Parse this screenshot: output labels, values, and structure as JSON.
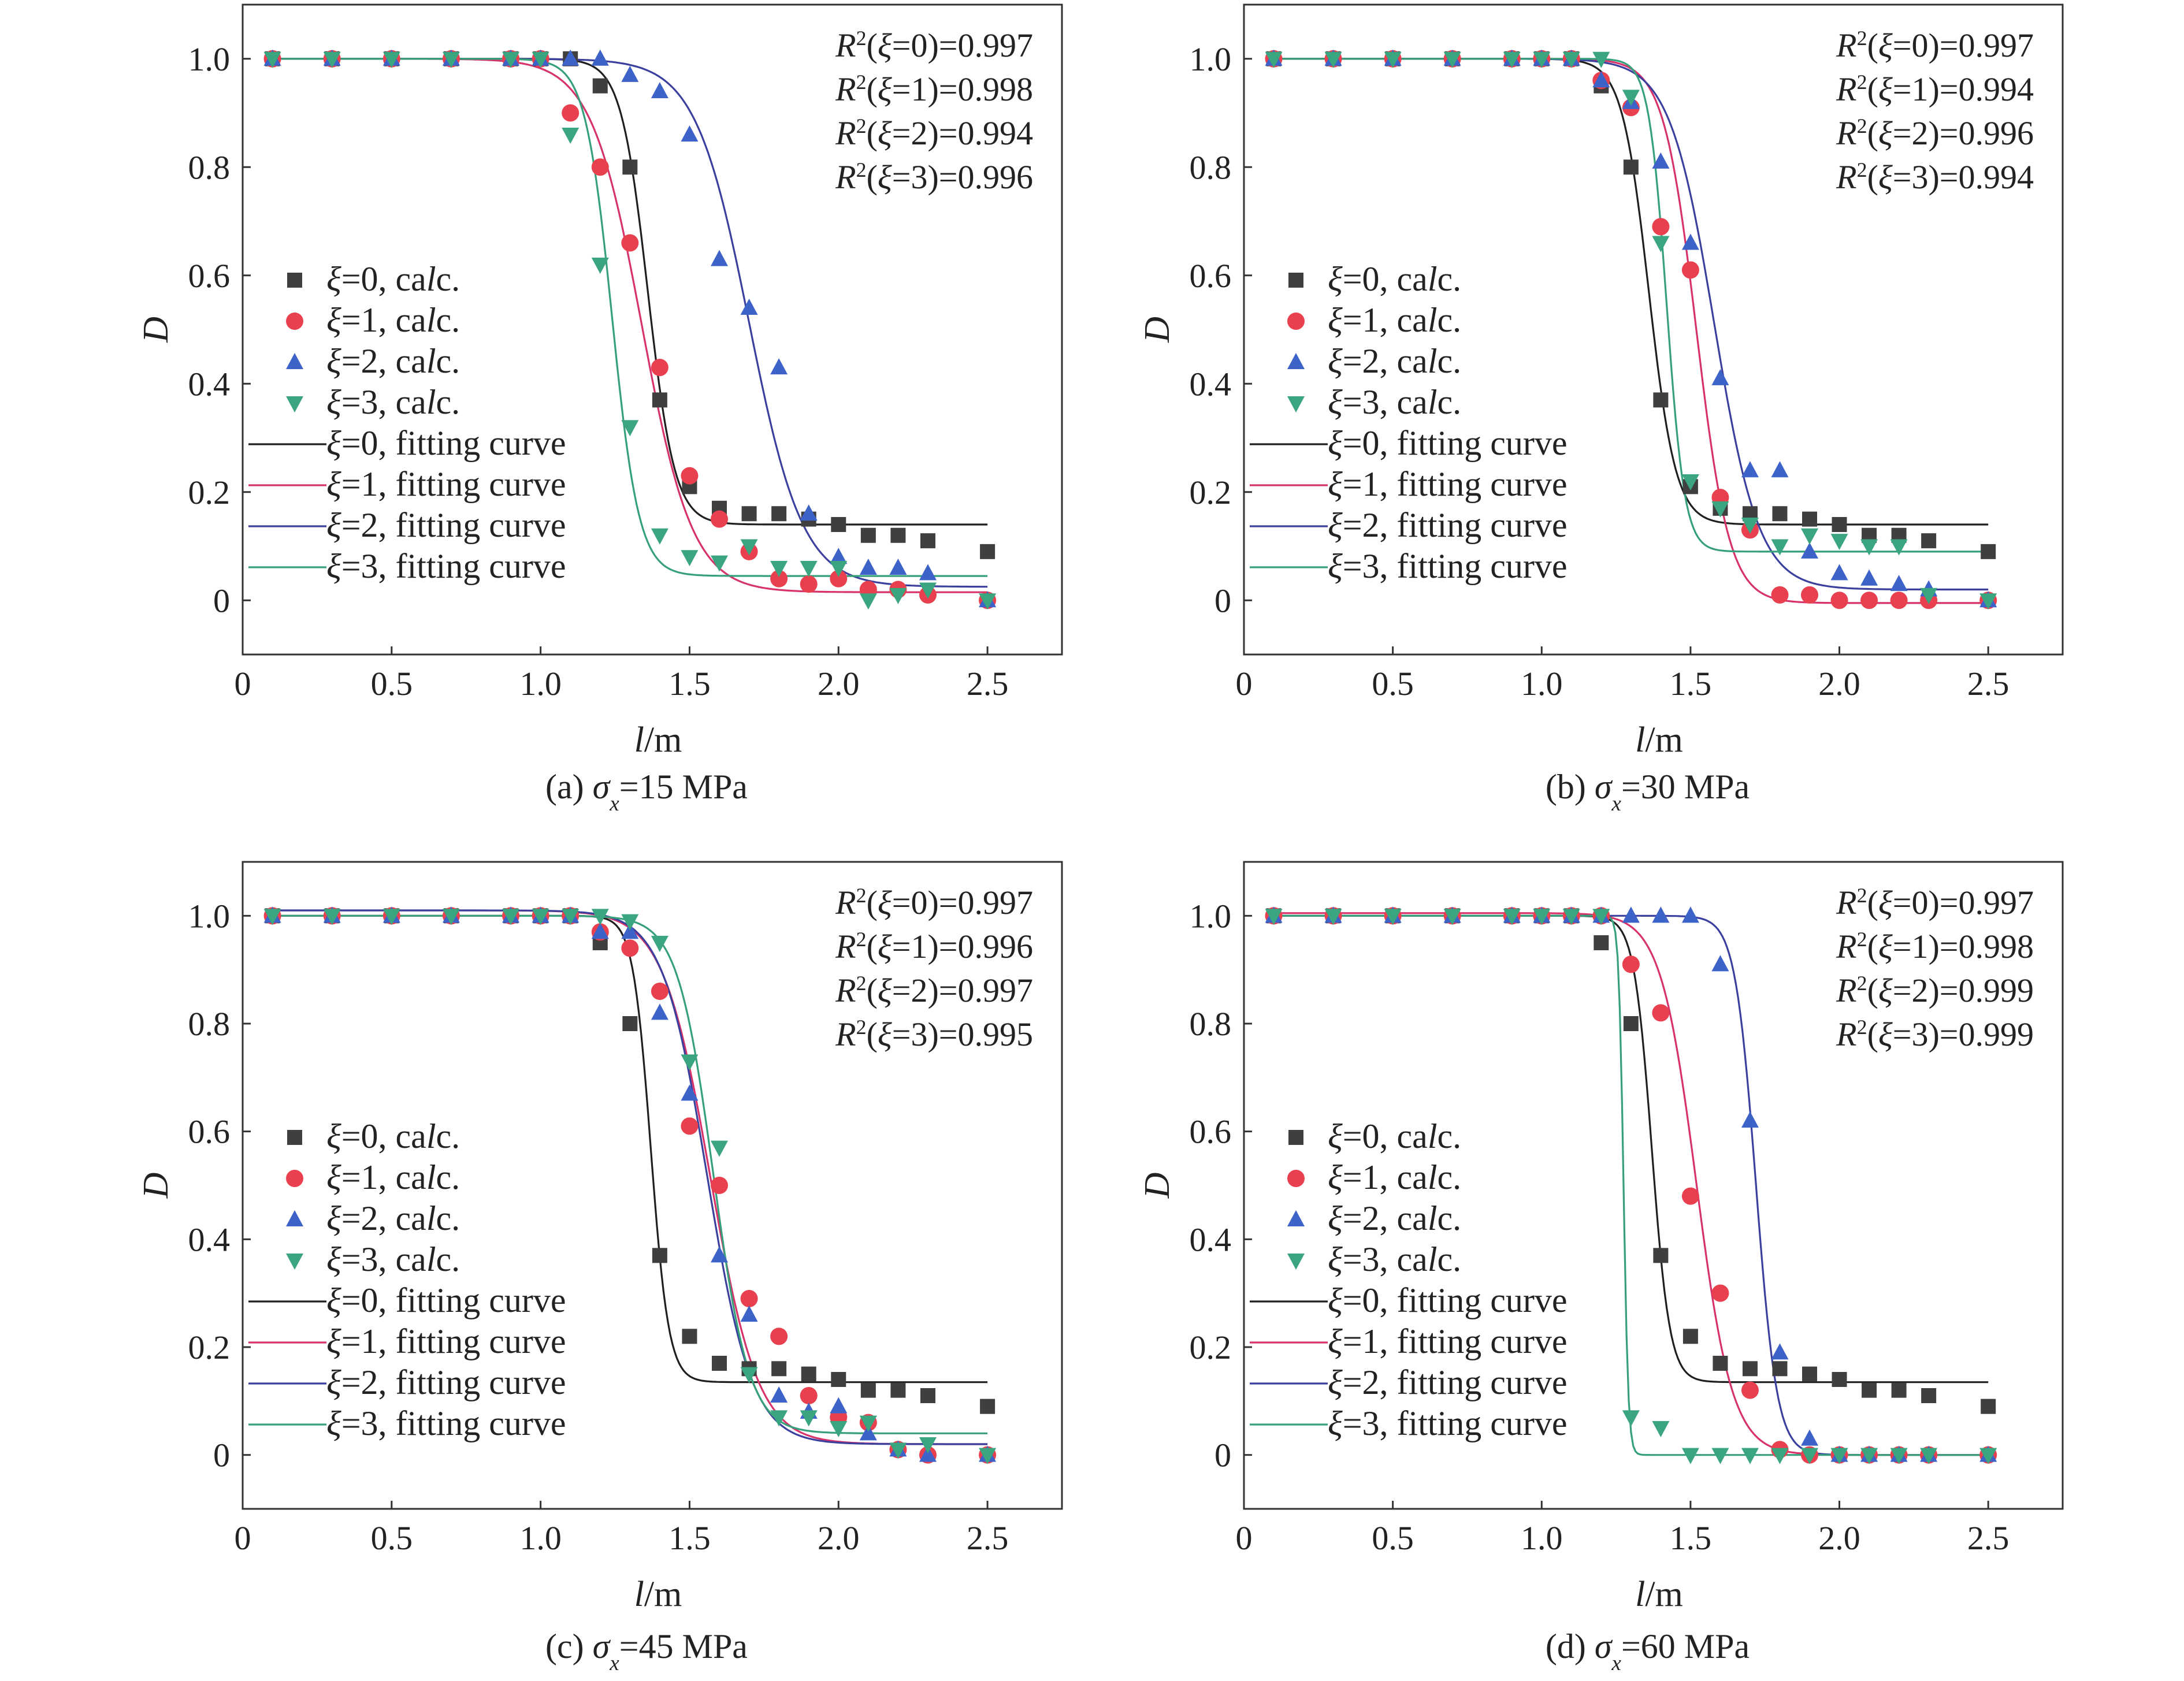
{
  "figure": {
    "panels": [
      {
        "caption": "(a) σx=15 MPa",
        "r2": [
          "R²(ξ=0)=0.997",
          "R²(ξ=1)=0.998",
          "R²(ξ=2)=0.994",
          "R²(ξ=3)=0.996"
        ]
      },
      {
        "caption": "(b) σx=30 MPa",
        "r2": [
          "R²(ξ=0)=0.997",
          "R²(ξ=1)=0.994",
          "R²(ξ=2)=0.996",
          "R²(ξ=3)=0.994"
        ]
      },
      {
        "caption": "(c) σx=45 MPa",
        "r2": [
          "R²(ξ=0)=0.997",
          "R²(ξ=1)=0.996",
          "R²(ξ=2)=0.997",
          "R²(ξ=3)=0.995"
        ]
      },
      {
        "caption": "(d) σx=60 MPa",
        "r2": [
          "R²(ξ=0)=0.997",
          "R²(ξ=1)=0.998",
          "R²(ξ=2)=0.999",
          "R²(ξ=3)=0.999"
        ]
      }
    ]
  },
  "colors": {
    "xi0": "#3f3f3f",
    "xi1": "#e8404f",
    "xi2": "#3d62c8",
    "xi3": "#3aa57e",
    "curve0": "#1f1f1f",
    "curve1": "#d8326a",
    "curve2": "#3b3f9e",
    "curve3": "#35a07a"
  },
  "chart_data": [
    {
      "type": "scatter",
      "caption": "(a) σx=15 MPa",
      "xlabel": "l/m",
      "ylabel": "D",
      "xlim": [
        0,
        2.75
      ],
      "ylim": [
        -0.1,
        1.1
      ],
      "xticks": [
        "0",
        "0.5",
        "1.0",
        "1.5",
        "2.0",
        "2.5"
      ],
      "yticks": [
        "0",
        "0.2",
        "0.4",
        "0.6",
        "0.8",
        "1.0"
      ],
      "legend": [
        "ξ=0, calc.",
        "ξ=1, calc.",
        "ξ=2, calc.",
        "ξ=3, calc.",
        "ξ=0, fitting curve",
        "ξ=1, fitting curve",
        "ξ=2, fitting curve",
        "ξ=3, fitting curve"
      ],
      "x": [
        0.1,
        0.3,
        0.5,
        0.7,
        0.9,
        1.0,
        1.1,
        1.2,
        1.3,
        1.4,
        1.5,
        1.6,
        1.7,
        1.8,
        1.9,
        2.0,
        2.1,
        2.2,
        2.3,
        2.5
      ],
      "series": [
        {
          "name": "ξ=0, calc.",
          "values": [
            1.0,
            1.0,
            1.0,
            1.0,
            1.0,
            1.0,
            1.0,
            0.95,
            0.8,
            0.37,
            0.21,
            0.17,
            0.16,
            0.16,
            0.15,
            0.14,
            0.12,
            0.12,
            0.11,
            0.09
          ]
        },
        {
          "name": "ξ=1, calc.",
          "values": [
            1.0,
            1.0,
            1.0,
            1.0,
            1.0,
            1.0,
            0.9,
            0.8,
            0.66,
            0.43,
            0.23,
            0.15,
            0.09,
            0.04,
            0.03,
            0.04,
            0.02,
            0.02,
            0.01,
            0.0
          ]
        },
        {
          "name": "ξ=2, calc.",
          "values": [
            1.0,
            1.0,
            1.0,
            1.0,
            1.0,
            1.0,
            1.0,
            1.0,
            0.97,
            0.94,
            0.86,
            0.63,
            0.54,
            0.43,
            0.16,
            0.08,
            0.06,
            0.06,
            0.05,
            0.0
          ]
        },
        {
          "name": "ξ=3, calc.",
          "values": [
            1.0,
            1.0,
            1.0,
            1.0,
            1.0,
            1.0,
            0.86,
            0.62,
            0.32,
            0.12,
            0.08,
            0.07,
            0.1,
            0.06,
            0.06,
            0.06,
            0.0,
            0.01,
            0.02,
            0.0
          ]
        }
      ],
      "curves": [
        {
          "name": "ξ=0, fitting curve",
          "top": 1.0,
          "bottom": 0.14,
          "x0": 1.36,
          "k": 0.045
        },
        {
          "name": "ξ=1, fitting curve",
          "top": 1.0,
          "bottom": 0.015,
          "x0": 1.34,
          "k": 0.085
        },
        {
          "name": "ξ=2, fitting curve",
          "top": 1.0,
          "bottom": 0.025,
          "x0": 1.7,
          "k": 0.09
        },
        {
          "name": "ξ=3, fitting curve",
          "top": 1.0,
          "bottom": 0.045,
          "x0": 1.24,
          "k": 0.045
        }
      ]
    },
    {
      "type": "scatter",
      "caption": "(b) σx=30 MPa",
      "xlabel": "l/m",
      "ylabel": "D",
      "xlim": [
        0,
        2.75
      ],
      "ylim": [
        -0.1,
        1.1
      ],
      "xticks": [
        "0",
        "0.5",
        "1.0",
        "1.5",
        "2.0",
        "2.5"
      ],
      "yticks": [
        "0",
        "0.2",
        "0.4",
        "0.6",
        "0.8",
        "1.0"
      ],
      "legend": [
        "ξ=0, calc.",
        "ξ=1, calc.",
        "ξ=2, calc.",
        "ξ=3, calc.",
        "ξ=0, fitting curve",
        "ξ=1, fitting curve",
        "ξ=2, fitting curve",
        "ξ=3, fitting curve"
      ],
      "x": [
        0.1,
        0.3,
        0.5,
        0.7,
        0.9,
        1.0,
        1.1,
        1.2,
        1.3,
        1.4,
        1.5,
        1.6,
        1.7,
        1.8,
        1.9,
        2.0,
        2.1,
        2.2,
        2.3,
        2.5
      ],
      "series": [
        {
          "name": "ξ=0, calc.",
          "values": [
            1.0,
            1.0,
            1.0,
            1.0,
            1.0,
            1.0,
            1.0,
            0.95,
            0.8,
            0.37,
            0.21,
            0.17,
            0.16,
            0.16,
            0.15,
            0.14,
            0.12,
            0.12,
            0.11,
            0.09
          ]
        },
        {
          "name": "ξ=1, calc.",
          "values": [
            1.0,
            1.0,
            1.0,
            1.0,
            1.0,
            1.0,
            1.0,
            0.96,
            0.91,
            0.69,
            0.61,
            0.19,
            0.13,
            0.01,
            0.01,
            0.0,
            0.0,
            0.0,
            0.0,
            0.0
          ]
        },
        {
          "name": "ξ=2, calc.",
          "values": [
            1.0,
            1.0,
            1.0,
            1.0,
            1.0,
            1.0,
            1.0,
            0.96,
            0.92,
            0.81,
            0.66,
            0.41,
            0.24,
            0.24,
            0.09,
            0.05,
            0.04,
            0.03,
            0.02,
            0.0
          ]
        },
        {
          "name": "ξ=3, calc.",
          "values": [
            1.0,
            1.0,
            1.0,
            1.0,
            1.0,
            1.0,
            1.0,
            1.0,
            0.93,
            0.66,
            0.22,
            0.17,
            0.14,
            0.1,
            0.12,
            0.11,
            0.1,
            0.1,
            0.01,
            0.0
          ]
        }
      ],
      "curves": [
        {
          "name": "ξ=0, fitting curve",
          "top": 1.0,
          "bottom": 0.14,
          "x0": 1.36,
          "k": 0.045
        },
        {
          "name": "ξ=1, fitting curve",
          "top": 1.0,
          "bottom": -0.005,
          "x0": 1.52,
          "k": 0.055
        },
        {
          "name": "ξ=2, fitting curve",
          "top": 1.0,
          "bottom": 0.02,
          "x0": 1.58,
          "k": 0.075
        },
        {
          "name": "ξ=3, fitting curve",
          "top": 1.0,
          "bottom": 0.09,
          "x0": 1.42,
          "k": 0.03
        }
      ]
    },
    {
      "type": "scatter",
      "caption": "(c) σx=45 MPa",
      "xlabel": "l/m",
      "ylabel": "D",
      "xlim": [
        0,
        2.75
      ],
      "ylim": [
        -0.1,
        1.1
      ],
      "xticks": [
        "0",
        "0.5",
        "1.0",
        "1.5",
        "2.0",
        "2.5"
      ],
      "yticks": [
        "0",
        "0.2",
        "0.4",
        "0.6",
        "0.8",
        "1.0"
      ],
      "legend": [
        "ξ=0, calc.",
        "ξ=1, calc.",
        "ξ=2, calc.",
        "ξ=3, calc.",
        "ξ=0, fitting curve",
        "ξ=1, fitting curve",
        "ξ=2, fitting curve",
        "ξ=3, fitting curve"
      ],
      "x": [
        0.1,
        0.3,
        0.5,
        0.7,
        0.9,
        1.0,
        1.1,
        1.2,
        1.3,
        1.4,
        1.5,
        1.6,
        1.7,
        1.8,
        1.9,
        2.0,
        2.1,
        2.2,
        2.3,
        2.5
      ],
      "series": [
        {
          "name": "ξ=0, calc.",
          "values": [
            1.0,
            1.0,
            1.0,
            1.0,
            1.0,
            1.0,
            1.0,
            0.95,
            0.8,
            0.37,
            0.22,
            0.17,
            0.16,
            0.16,
            0.15,
            0.14,
            0.12,
            0.12,
            0.11,
            0.09
          ]
        },
        {
          "name": "ξ=1, calc.",
          "values": [
            1.0,
            1.0,
            1.0,
            1.0,
            1.0,
            1.0,
            1.0,
            0.97,
            0.94,
            0.86,
            0.61,
            0.5,
            0.29,
            0.22,
            0.11,
            0.07,
            0.06,
            0.01,
            0.0,
            0.0
          ]
        },
        {
          "name": "ξ=2, calc.",
          "values": [
            1.0,
            1.0,
            1.0,
            1.0,
            1.0,
            1.0,
            1.0,
            0.97,
            0.97,
            0.82,
            0.67,
            0.37,
            0.26,
            0.11,
            0.08,
            0.09,
            0.04,
            0.01,
            0.0,
            0.0
          ]
        },
        {
          "name": "ξ=3, calc.",
          "values": [
            1.0,
            1.0,
            1.0,
            1.0,
            1.0,
            1.0,
            1.0,
            1.0,
            0.99,
            0.95,
            0.73,
            0.57,
            0.15,
            0.07,
            0.07,
            0.05,
            0.06,
            0.01,
            0.02,
            0.0
          ]
        }
      ],
      "curves": [
        {
          "name": "ξ=0, fitting curve",
          "top": 1.0,
          "bottom": 0.135,
          "x0": 1.37,
          "k": 0.03
        },
        {
          "name": "ξ=1, fitting curve",
          "top": 1.01,
          "bottom": 0.02,
          "x0": 1.57,
          "k": 0.08
        },
        {
          "name": "ξ=2, fitting curve",
          "top": 1.01,
          "bottom": 0.02,
          "x0": 1.56,
          "k": 0.075
        },
        {
          "name": "ξ=3, fitting curve",
          "top": 1.0,
          "bottom": 0.04,
          "x0": 1.58,
          "k": 0.06
        }
      ]
    },
    {
      "type": "scatter",
      "caption": "(d) σx=60 MPa",
      "xlabel": "l/m",
      "ylabel": "D",
      "xlim": [
        0,
        2.75
      ],
      "ylim": [
        -0.1,
        1.1
      ],
      "xticks": [
        "0",
        "0.5",
        "1.0",
        "1.5",
        "2.0",
        "2.5"
      ],
      "yticks": [
        "0",
        "0.2",
        "0.4",
        "0.6",
        "0.8",
        "1.0"
      ],
      "legend": [
        "ξ=0, calc.",
        "ξ=1, calc.",
        "ξ=2, calc.",
        "ξ=3, calc.",
        "ξ=0, fitting curve",
        "ξ=1, fitting curve",
        "ξ=2, fitting curve",
        "ξ=3, fitting curve"
      ],
      "x": [
        0.1,
        0.3,
        0.5,
        0.7,
        0.9,
        1.0,
        1.1,
        1.2,
        1.3,
        1.4,
        1.5,
        1.6,
        1.7,
        1.8,
        1.9,
        2.0,
        2.1,
        2.2,
        2.3,
        2.5
      ],
      "series": [
        {
          "name": "ξ=0, calc.",
          "values": [
            1.0,
            1.0,
            1.0,
            1.0,
            1.0,
            1.0,
            1.0,
            0.95,
            0.8,
            0.37,
            0.22,
            0.17,
            0.16,
            0.16,
            0.15,
            0.14,
            0.12,
            0.12,
            0.11,
            0.09
          ]
        },
        {
          "name": "ξ=1, calc.",
          "values": [
            1.0,
            1.0,
            1.0,
            1.0,
            1.0,
            1.0,
            1.0,
            1.0,
            0.91,
            0.82,
            0.48,
            0.3,
            0.12,
            0.01,
            0.0,
            0.0,
            0.0,
            0.0,
            0.0,
            0.0
          ]
        },
        {
          "name": "ξ=2, calc.",
          "values": [
            1.0,
            1.0,
            1.0,
            1.0,
            1.0,
            1.0,
            1.0,
            1.0,
            1.0,
            1.0,
            1.0,
            0.91,
            0.62,
            0.19,
            0.03,
            0.0,
            0.0,
            0.0,
            0.0,
            0.0
          ]
        },
        {
          "name": "ξ=3, calc.",
          "values": [
            1.0,
            1.0,
            1.0,
            1.0,
            1.0,
            1.0,
            1.0,
            1.0,
            0.07,
            0.05,
            0.0,
            0.0,
            0.0,
            0.0,
            0.0,
            0.0,
            0.0,
            0.0,
            0.0,
            0.0
          ]
        }
      ],
      "curves": [
        {
          "name": "ξ=0, fitting curve",
          "top": 1.0,
          "bottom": 0.135,
          "x0": 1.37,
          "k": 0.03
        },
        {
          "name": "ξ=1, fitting curve",
          "top": 1.005,
          "bottom": 0.0,
          "x0": 1.52,
          "k": 0.06
        },
        {
          "name": "ξ=2, fitting curve",
          "top": 1.0,
          "bottom": 0.0,
          "x0": 1.72,
          "k": 0.035
        },
        {
          "name": "ξ=3, fitting curve",
          "top": 1.0,
          "bottom": 0.0,
          "x0": 1.275,
          "k": 0.008
        }
      ]
    }
  ]
}
